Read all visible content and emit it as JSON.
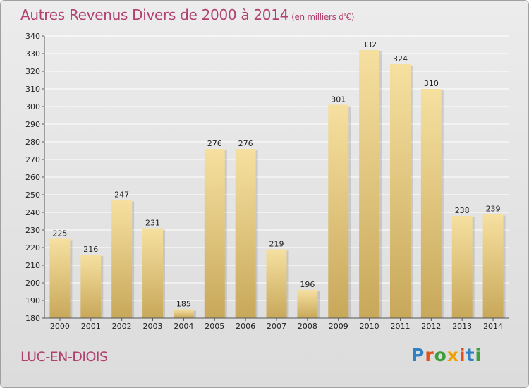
{
  "title": "Autres Revenus Divers de 2000 à 2014",
  "subtitle": "(en milliers d'€)",
  "location": "LUC-EN-DIOIS",
  "logo": {
    "letters": [
      "P",
      "r",
      "o",
      "x",
      "i",
      "t",
      "i"
    ],
    "colors": [
      "#2f80c4",
      "#e2511b",
      "#3c9e3c",
      "#f0a000",
      "#e2511b",
      "#2f80c4",
      "#3c9e3c"
    ]
  },
  "colors": {
    "bar_top": "#f6e0a0",
    "bar_bottom": "#c8a85a",
    "grid": "#ffffff",
    "axis": "#555555"
  },
  "chart_data": {
    "type": "bar",
    "title": "Autres Revenus Divers de 2000 à 2014",
    "xlabel": "",
    "ylabel": "",
    "categories": [
      "2000",
      "2001",
      "2002",
      "2003",
      "2004",
      "2005",
      "2006",
      "2007",
      "2008",
      "2009",
      "2010",
      "2011",
      "2012",
      "2013",
      "2014"
    ],
    "values": [
      225,
      216,
      247,
      231,
      185,
      276,
      276,
      219,
      196,
      301,
      332,
      324,
      310,
      238,
      239
    ],
    "ylim": [
      180,
      340
    ],
    "yticks": [
      180,
      190,
      200,
      210,
      220,
      230,
      240,
      250,
      260,
      270,
      280,
      290,
      300,
      310,
      320,
      330,
      340
    ],
    "grid": true
  }
}
